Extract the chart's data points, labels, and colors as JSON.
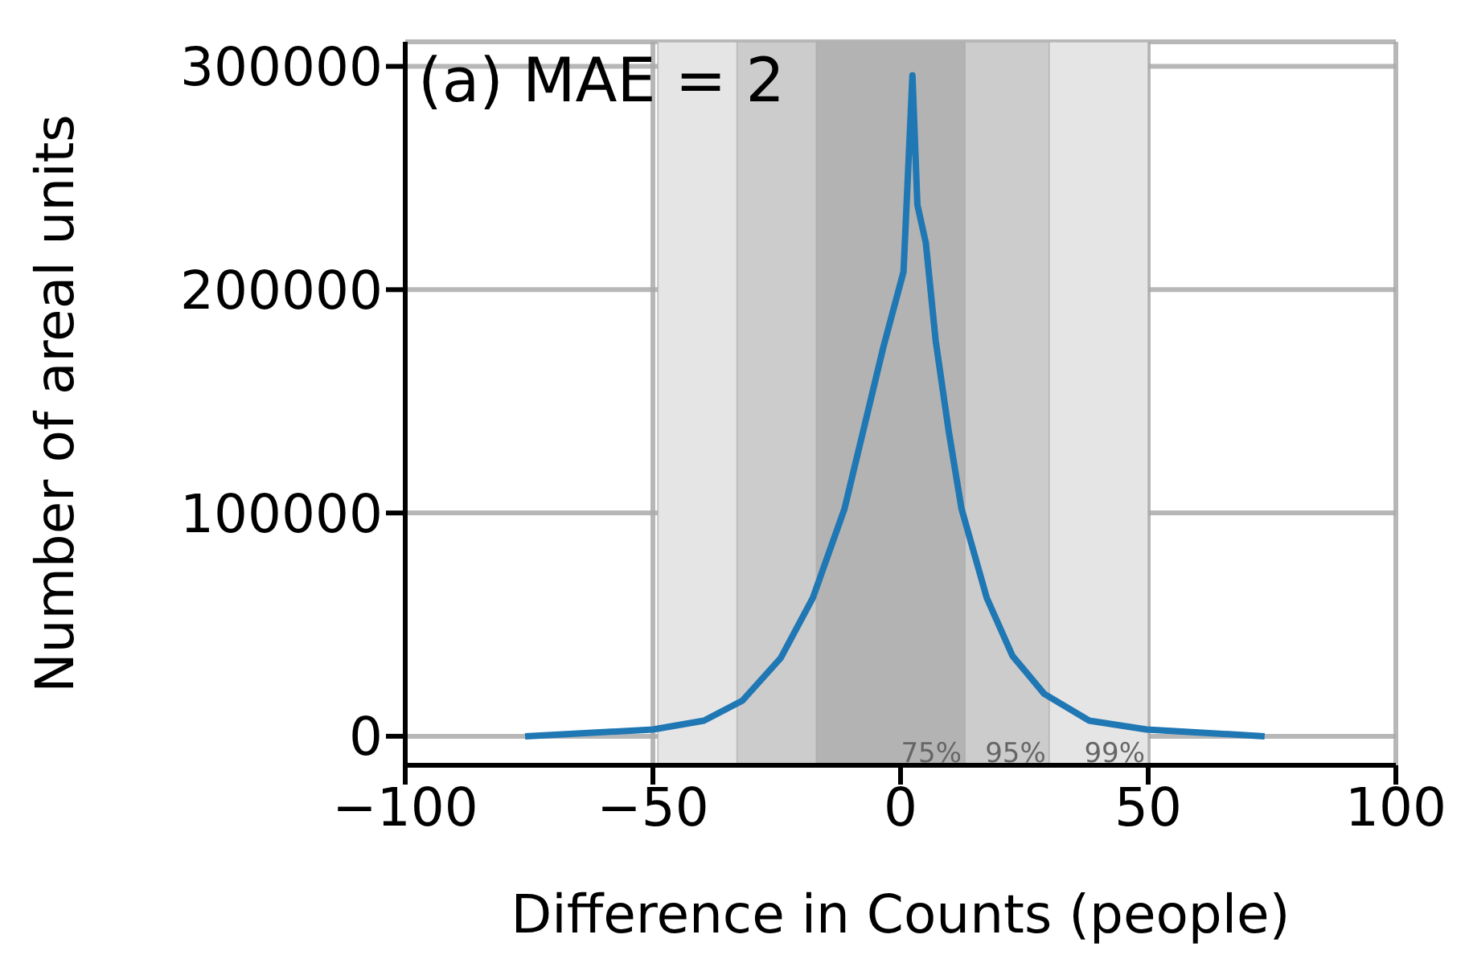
{
  "chart_data": {
    "type": "line",
    "xlabel": "Difference in Counts (people)",
    "ylabel": "Number of areal units",
    "annotations": [
      "(a) MAE = 2"
    ],
    "x": [
      -75.8,
      -50,
      -39.7,
      -31.9,
      -24.2,
      -17.7,
      -11.3,
      -3.5,
      0.6,
      2.4,
      3.4,
      5.1,
      7.1,
      9.7,
      12.3,
      17.4,
      22.6,
      29,
      38.1,
      49.7,
      73.5
    ],
    "series": [
      {
        "color": "#1f77b4",
        "values": [
          0,
          3000,
          7000,
          16000,
          35000,
          62000,
          102000,
          174000,
          208000,
          296000,
          238000,
          221000,
          177000,
          137000,
          102000,
          62000,
          36000,
          19000,
          7000,
          3000,
          0
        ]
      }
    ],
    "xlim": [
      -100,
      100
    ],
    "xticks": [
      -100,
      -50,
      0,
      50,
      100
    ],
    "ylim": [
      -13000,
      311000
    ],
    "yticks": [
      0,
      100000,
      200000,
      300000
    ],
    "bands": [
      {
        "axis": "x",
        "from": -49,
        "to": 50,
        "label": "99%",
        "color": "#e5e5e5"
      },
      {
        "axis": "x",
        "from": -33,
        "to": 30,
        "label": "95%",
        "color": "#cccccc"
      },
      {
        "axis": "x",
        "from": -17,
        "to": 13,
        "label": "75%",
        "color": "#b3b3b3"
      }
    ],
    "grid": true,
    "legend": false,
    "marker": "none",
    "line_style": "solid"
  }
}
